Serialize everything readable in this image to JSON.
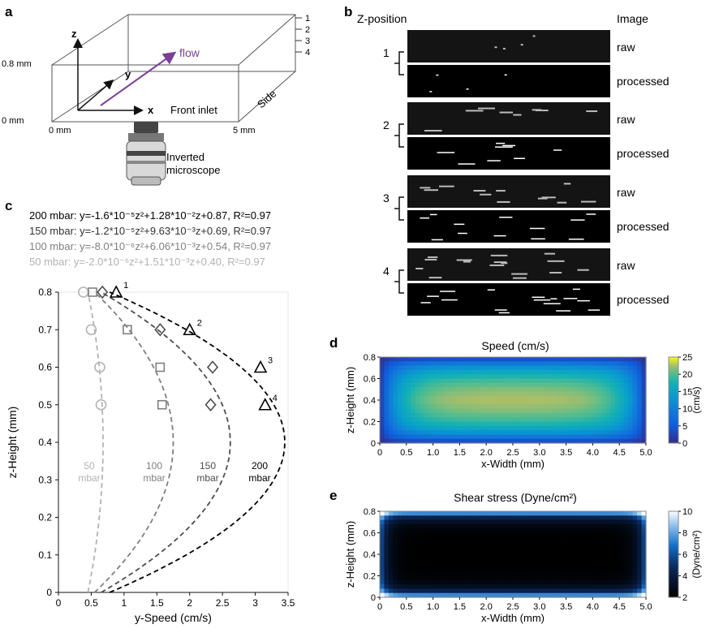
{
  "panel_a": {
    "label": "a",
    "axis_z": "z",
    "axis_y": "y",
    "axis_x": "x",
    "z_top": "0.8 mm",
    "z_bottom": "0 mm",
    "x_left": "0 mm",
    "x_right": "5 mm",
    "flow": "flow",
    "front_inlet": "Front inlet",
    "side": "Side",
    "levels": [
      "1",
      "2",
      "3",
      "4"
    ],
    "microscope_line1": "Inverted",
    "microscope_line2": "microscope",
    "flow_color": "#7b3f98"
  },
  "panel_b": {
    "label": "b",
    "col_z": "Z-position",
    "col_image": "Image",
    "rows": [
      {
        "pos": "1",
        "raw": "raw",
        "processed": "processed"
      },
      {
        "pos": "2",
        "raw": "raw",
        "processed": "processed"
      },
      {
        "pos": "3",
        "raw": "raw",
        "processed": "processed"
      },
      {
        "pos": "4",
        "raw": "raw",
        "processed": "processed"
      }
    ]
  },
  "panel_c": {
    "label": "c",
    "equations": [
      {
        "text": "200 mbar: y=-1.6*10⁻⁵z²+1.28*10⁻²z+0.87, R²=0.97",
        "color": "#000000"
      },
      {
        "text": "150 mbar: y=-1.2*10⁻⁵z²+9.63*10⁻³z+0.69, R²=0.97",
        "color": "#333333"
      },
      {
        "text": "100 mbar: y=-8.0*10⁻⁶z²+6.06*10⁻³z+0.54, R²=0.97",
        "color": "#808080"
      },
      {
        "text": "50 mbar: y=-2.0*10⁻⁶z²+1.51*10⁻³z+0.40, R²=0.97",
        "color": "#b3b3b3"
      }
    ],
    "point_labels": [
      "1",
      "2",
      "3",
      "4"
    ]
  },
  "panel_d": {
    "label": "d",
    "title": "Speed (cm/s)",
    "colorbar_label": "(cm/s)",
    "colorbar_ticks": [
      "25",
      "20",
      "15",
      "10",
      "5",
      "0"
    ]
  },
  "panel_e": {
    "label": "e",
    "title": "Shear stress (Dyne/cm²)",
    "colorbar_label": "(Dyne/cm²)",
    "colorbar_ticks": [
      "10",
      "8",
      "6",
      "4",
      "2"
    ]
  },
  "chart_data": [
    {
      "type": "scatter",
      "id": "c",
      "xlabel": "y-Speed (cm/s)",
      "ylabel": "z-Height (mm)",
      "xlim": [
        0,
        3.5
      ],
      "ylim": [
        0,
        0.8
      ],
      "xticks": [
        "0",
        "0.5",
        "1",
        "1.5",
        "2",
        "2.5",
        "3",
        "3.5"
      ],
      "yticks": [
        "0",
        "0.1",
        "0.2",
        "0.3",
        "0.4",
        "0.5",
        "0.6",
        "0.7",
        "0.8"
      ],
      "series": [
        {
          "name": "50 mbar",
          "label_line1": "50",
          "label_line2": "mbar",
          "marker": "circle",
          "color": "#b3b3b3",
          "points": [
            [
              0.38,
              0.8
            ],
            [
              0.5,
              0.7
            ],
            [
              0.63,
              0.6
            ],
            [
              0.65,
              0.5
            ]
          ],
          "fit": {
            "vertex": [
              0.68,
              0.4
            ],
            "x_at_0": 0.45
          }
        },
        {
          "name": "100 mbar",
          "label_line1": "100",
          "label_line2": "mbar",
          "marker": "square",
          "color": "#808080",
          "points": [
            [
              0.52,
              0.8
            ],
            [
              1.05,
              0.7
            ],
            [
              1.55,
              0.6
            ],
            [
              1.58,
              0.5
            ]
          ],
          "fit": {
            "vertex": [
              1.75,
              0.4
            ],
            "x_at_0": 0.55
          }
        },
        {
          "name": "150 mbar",
          "label_line1": "150",
          "label_line2": "mbar",
          "marker": "diamond",
          "color": "#4d4d4d",
          "points": [
            [
              0.67,
              0.8
            ],
            [
              1.55,
              0.7
            ],
            [
              2.35,
              0.6
            ],
            [
              2.32,
              0.5
            ]
          ],
          "fit": {
            "vertex": [
              2.62,
              0.4
            ],
            "x_at_0": 0.65
          }
        },
        {
          "name": "200 mbar",
          "label_line1": "200",
          "label_line2": "mbar",
          "marker": "triangle",
          "color": "#000000",
          "points": [
            [
              0.88,
              0.8
            ],
            [
              2.0,
              0.7
            ],
            [
              3.08,
              0.6
            ],
            [
              3.15,
              0.5
            ]
          ],
          "fit": {
            "vertex": [
              3.45,
              0.4
            ],
            "x_at_0": 0.78
          }
        }
      ]
    },
    {
      "type": "heatmap",
      "id": "d",
      "title": "Speed (cm/s)",
      "xlabel": "x-Width (mm)",
      "ylabel": "z-Height (mm)",
      "xlim": [
        0,
        5.0
      ],
      "ylim": [
        0,
        0.8
      ],
      "xticks": [
        "0",
        "0.5",
        "1.0",
        "1.5",
        "2.0",
        "2.5",
        "3.0",
        "3.5",
        "4.0",
        "4.5",
        "5.0"
      ],
      "yticks": [
        "0",
        "0.2",
        "0.4",
        "0.6",
        "0.8"
      ],
      "clim": [
        0,
        25
      ],
      "colormap": "parula",
      "max_value": 25,
      "profile": "plug flow: maximum ~23 cm/s in core, decaying to 0 at walls"
    },
    {
      "type": "heatmap",
      "id": "e",
      "title": "Shear stress (Dyne/cm²)",
      "xlabel": "x-Width (mm)",
      "ylabel": "z-Height (mm)",
      "xlim": [
        0,
        5.0
      ],
      "ylim": [
        0,
        0.8
      ],
      "xticks": [
        "0",
        "0.5",
        "1.0",
        "1.5",
        "2.0",
        "2.5",
        "3.0",
        "3.5",
        "4.0",
        "4.5",
        "5.0"
      ],
      "yticks": [
        "0",
        "0.2",
        "0.4",
        "0.6",
        "0.8"
      ],
      "clim": [
        2,
        10
      ],
      "colormap": "black-blue-white",
      "profile": "minimum (~2) at center, maximum (~10) at walls and corners"
    }
  ]
}
